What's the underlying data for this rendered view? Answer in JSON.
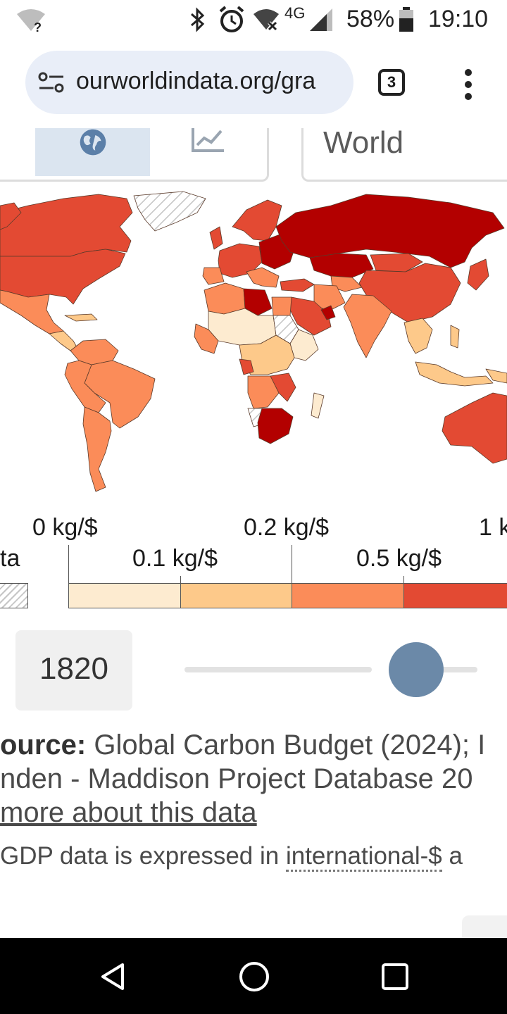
{
  "status_bar": {
    "network": "4G",
    "battery": "58%",
    "time": "19:10",
    "icons": [
      "wifi-question-icon",
      "bluetooth-icon",
      "alarm-icon",
      "wifi-x-icon",
      "signal-icon",
      "battery-icon"
    ]
  },
  "browser": {
    "url": "ourworldindata.org/gra",
    "tab_count": "3",
    "icons": [
      "site-info-icon",
      "menu-dots-icon"
    ]
  },
  "chart_controls": {
    "tabs": [
      {
        "name": "map",
        "icon": "globe-icon",
        "selected": true
      },
      {
        "name": "chart",
        "icon": "line-chart-icon",
        "selected": false
      }
    ],
    "entity_selector": "World"
  },
  "map": {
    "color_scheme": [
      "#fdebd0",
      "#fdc98a",
      "#fb8c59",
      "#e34a33",
      "#b30000"
    ],
    "no_data_pattern": "hatched-grey"
  },
  "legend": {
    "no_data_label": "ta",
    "labels_top": [
      "0 kg/$",
      "0.2 kg/$",
      "1 k"
    ],
    "labels_bottom": [
      "0.1 kg/$",
      "0.5 kg/$"
    ],
    "bins": [
      {
        "color": "#fdebd0"
      },
      {
        "color": "#fdc98a"
      },
      {
        "color": "#fb8c59"
      },
      {
        "color": "#e34a33"
      }
    ]
  },
  "timeline": {
    "year": "1820",
    "handle_position_fraction": 0.79
  },
  "source": {
    "label": "ource:",
    "line1": "Global Carbon Budget (2024); I",
    "line2": "nden - Maddison Project Database 20",
    "more_link": "more about this data",
    "note_prefix": "GDP data is expressed in ",
    "note_link": "international-$",
    "note_suffix": " a"
  },
  "nav_bar": {
    "icons": [
      "back-icon",
      "home-icon",
      "recents-icon"
    ]
  }
}
